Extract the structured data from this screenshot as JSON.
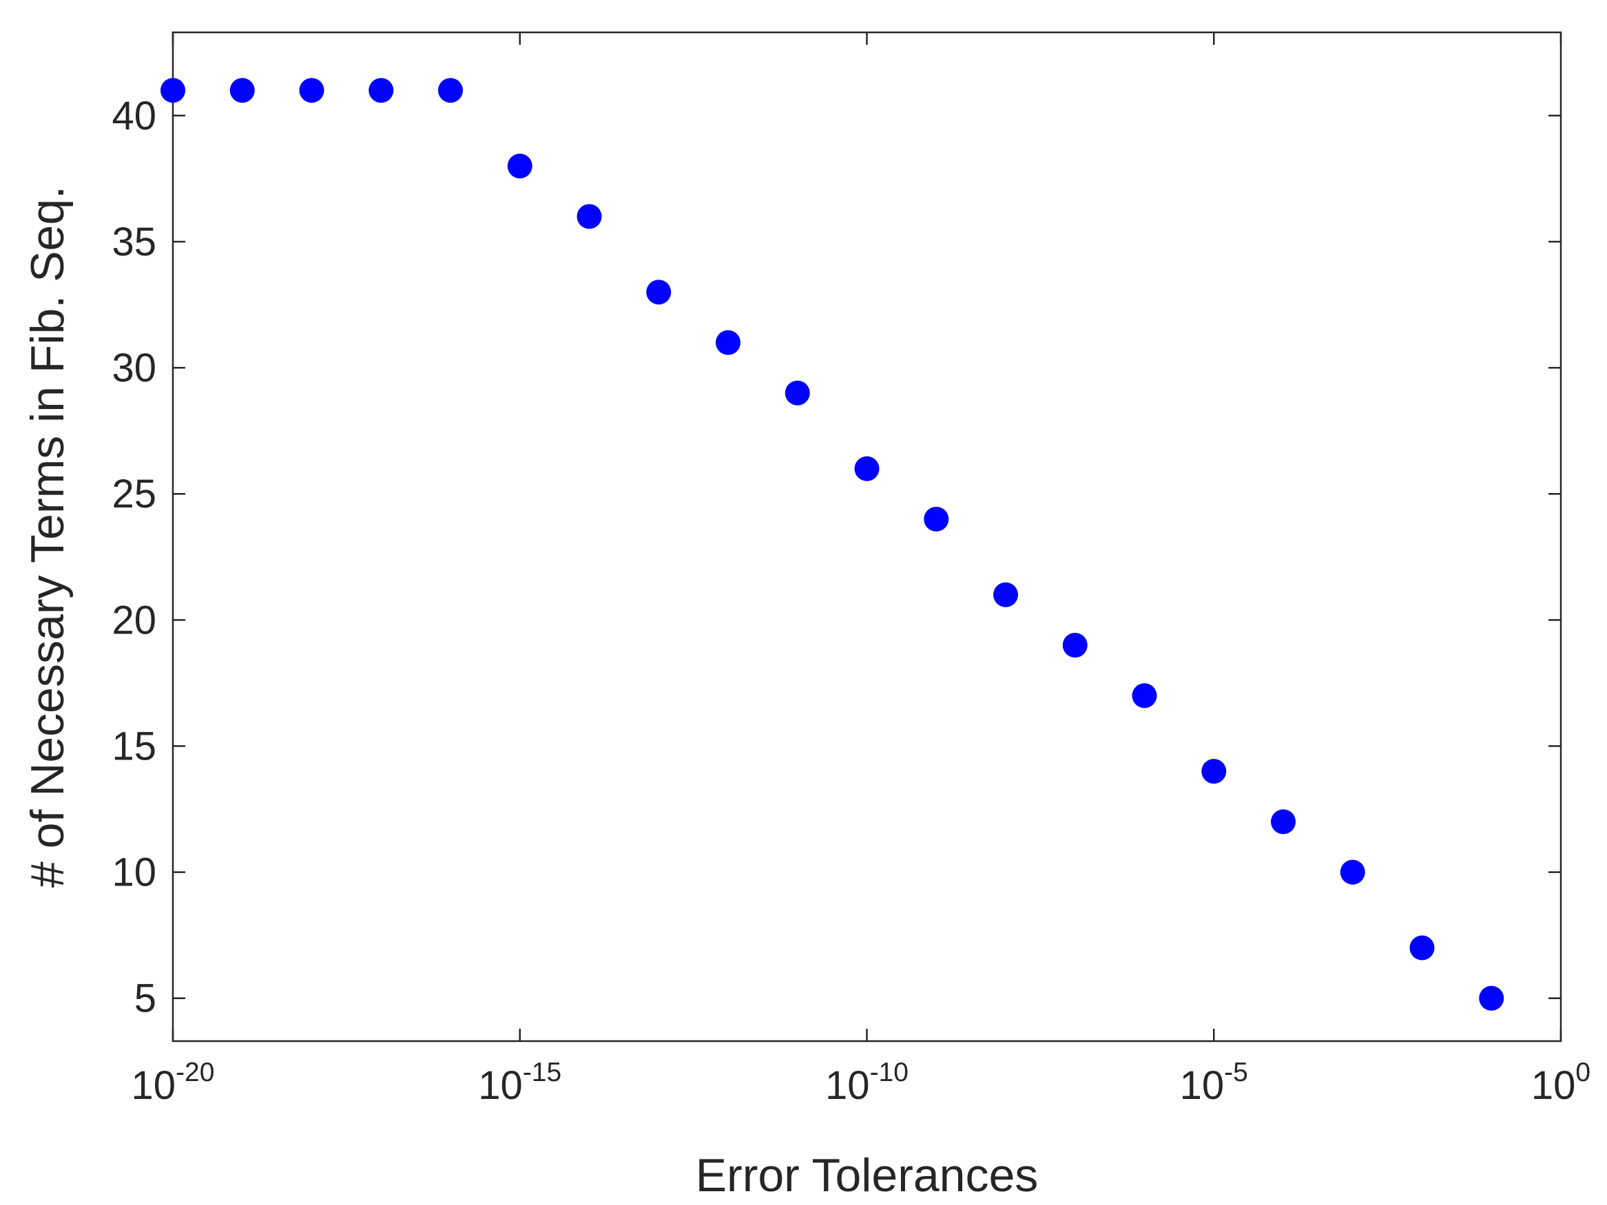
{
  "chart_data": {
    "type": "scatter",
    "xlabel": "Error Tolerances",
    "ylabel": "# of Necessary Terms in Fib. Seq.",
    "xscale": "log",
    "xlim": [
      1e-20,
      1
    ],
    "ylim": [
      3.3,
      43.3
    ],
    "grid": false,
    "legend": "none",
    "x_ticks": [
      {
        "value": 1e-20,
        "base": "10",
        "exponent": "-20"
      },
      {
        "value": 1e-15,
        "base": "10",
        "exponent": "-15"
      },
      {
        "value": 1e-10,
        "base": "10",
        "exponent": "-10"
      },
      {
        "value": 1e-05,
        "base": "10",
        "exponent": "-5"
      },
      {
        "value": 1,
        "base": "10",
        "exponent": "0"
      }
    ],
    "y_ticks": [
      5,
      10,
      15,
      20,
      25,
      30,
      35,
      40
    ],
    "marker_color": "#0000ff",
    "axis_color": "#262626",
    "series": [
      {
        "x": [
          1e-20,
          1e-19,
          1e-18,
          1e-17,
          1e-16,
          1e-15,
          1e-14,
          1e-13,
          1e-12,
          1e-11,
          1e-10,
          1e-09,
          1e-08,
          1e-07,
          1e-06,
          1e-05,
          0.0001,
          0.001,
          0.01,
          0.1
        ],
        "y": [
          41,
          41,
          41,
          41,
          41,
          38,
          36,
          33,
          31,
          29,
          26,
          24,
          21,
          19,
          17,
          14,
          12,
          10,
          7,
          5
        ]
      }
    ]
  }
}
